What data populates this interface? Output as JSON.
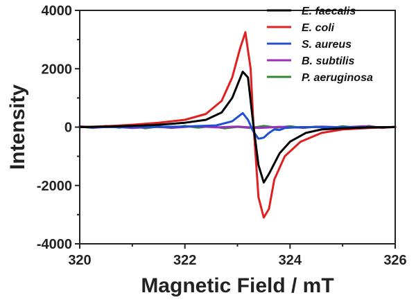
{
  "chart_data": {
    "type": "line",
    "title": "",
    "xlabel": "Magnetic Field / mT",
    "ylabel": "Intensity",
    "xlim": [
      320,
      326
    ],
    "ylim": [
      -4000,
      4000
    ],
    "x_ticks": [
      320,
      322,
      324,
      326
    ],
    "y_ticks": [
      4000,
      2000,
      0,
      -2000,
      -4000
    ],
    "grid": false,
    "legend_position": "top-right",
    "series": [
      {
        "name": "E. faecalis",
        "color": "#000000",
        "points": [
          [
            320,
            0
          ],
          [
            320.5,
            20
          ],
          [
            321,
            40
          ],
          [
            321.5,
            80
          ],
          [
            322,
            150
          ],
          [
            322.4,
            250
          ],
          [
            322.7,
            500
          ],
          [
            322.9,
            1000
          ],
          [
            323.1,
            1900
          ],
          [
            323.2,
            1700
          ],
          [
            323.3,
            100
          ],
          [
            323.4,
            -1300
          ],
          [
            323.5,
            -1900
          ],
          [
            323.6,
            -1600
          ],
          [
            323.8,
            -900
          ],
          [
            324,
            -500
          ],
          [
            324.3,
            -200
          ],
          [
            324.6,
            -80
          ],
          [
            325,
            -40
          ],
          [
            325.5,
            -10
          ],
          [
            326,
            0
          ]
        ]
      },
      {
        "name": "E. coli",
        "color": "#e02020",
        "points": [
          [
            320,
            0
          ],
          [
            320.5,
            30
          ],
          [
            321,
            80
          ],
          [
            321.5,
            150
          ],
          [
            322,
            250
          ],
          [
            322.4,
            450
          ],
          [
            322.7,
            900
          ],
          [
            322.9,
            1700
          ],
          [
            323.05,
            2700
          ],
          [
            323.15,
            3250
          ],
          [
            323.25,
            2000
          ],
          [
            323.3,
            200
          ],
          [
            323.4,
            -2400
          ],
          [
            323.5,
            -3100
          ],
          [
            323.6,
            -2800
          ],
          [
            323.7,
            -1800
          ],
          [
            323.9,
            -1000
          ],
          [
            324.2,
            -500
          ],
          [
            324.6,
            -200
          ],
          [
            325,
            -80
          ],
          [
            325.5,
            -30
          ],
          [
            326,
            0
          ]
        ]
      },
      {
        "name": "S. aureus",
        "color": "#2050d0",
        "points": [
          [
            320,
            0
          ],
          [
            321,
            0
          ],
          [
            322,
            20
          ],
          [
            322.6,
            60
          ],
          [
            322.9,
            200
          ],
          [
            323.1,
            480
          ],
          [
            323.2,
            250
          ],
          [
            323.3,
            -150
          ],
          [
            323.4,
            -400
          ],
          [
            323.5,
            -360
          ],
          [
            323.6,
            -200
          ],
          [
            323.7,
            -80
          ],
          [
            323.8,
            -100
          ],
          [
            323.9,
            -30
          ],
          [
            324.2,
            0
          ],
          [
            326,
            0
          ]
        ]
      },
      {
        "name": "B. subtilis",
        "color": "#9b30c0",
        "points": [
          [
            320,
            30
          ],
          [
            320.3,
            -20
          ],
          [
            320.6,
            20
          ],
          [
            321,
            -30
          ],
          [
            321.4,
            10
          ],
          [
            321.8,
            -20
          ],
          [
            322.2,
            30
          ],
          [
            322.6,
            -10
          ],
          [
            323,
            20
          ],
          [
            323.4,
            -30
          ],
          [
            323.8,
            10
          ],
          [
            324.2,
            -20
          ],
          [
            324.6,
            20
          ],
          [
            325,
            -10
          ],
          [
            325.4,
            30
          ],
          [
            325.8,
            -20
          ],
          [
            326,
            10
          ]
        ]
      },
      {
        "name": "P. aeruginosa",
        "color": "#2e8b2e",
        "points": [
          [
            320,
            20
          ],
          [
            320.25,
            -30
          ],
          [
            320.5,
            40
          ],
          [
            320.75,
            -20
          ],
          [
            321,
            30
          ],
          [
            321.25,
            -40
          ],
          [
            321.5,
            20
          ],
          [
            321.75,
            -30
          ],
          [
            322,
            40
          ],
          [
            322.25,
            -20
          ],
          [
            322.5,
            30
          ],
          [
            322.75,
            -40
          ],
          [
            323,
            10
          ],
          [
            323.25,
            -30
          ],
          [
            323.5,
            40
          ],
          [
            323.75,
            -20
          ],
          [
            324,
            30
          ],
          [
            324.25,
            -30
          ],
          [
            324.5,
            20
          ],
          [
            324.75,
            -40
          ],
          [
            325,
            30
          ],
          [
            325.25,
            -20
          ],
          [
            325.5,
            40
          ],
          [
            325.75,
            -30
          ],
          [
            326,
            20
          ]
        ]
      }
    ]
  }
}
